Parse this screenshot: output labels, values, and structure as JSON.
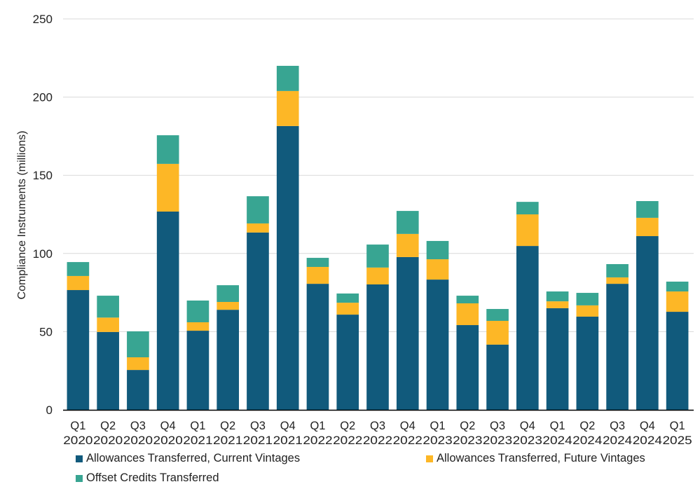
{
  "chart_data": {
    "type": "bar",
    "stacked": true,
    "title": "",
    "xlabel": "",
    "ylabel": "Compliance Instruments (millions)",
    "ylim": [
      0,
      250
    ],
    "yticks": [
      0,
      50,
      100,
      150,
      200,
      250
    ],
    "grid": true,
    "legend_position": "bottom",
    "categories": [
      {
        "q": "Q1",
        "year": "2020"
      },
      {
        "q": "Q2",
        "year": "2020"
      },
      {
        "q": "Q3",
        "year": "2020"
      },
      {
        "q": "Q4",
        "year": "2020"
      },
      {
        "q": "Q1",
        "year": "2021"
      },
      {
        "q": "Q2",
        "year": "2021"
      },
      {
        "q": "Q3",
        "year": "2021"
      },
      {
        "q": "Q4",
        "year": "2021"
      },
      {
        "q": "Q1",
        "year": "2022"
      },
      {
        "q": "Q2",
        "year": "2022"
      },
      {
        "q": "Q3",
        "year": "2022"
      },
      {
        "q": "Q4",
        "year": "2022"
      },
      {
        "q": "Q1",
        "year": "2023"
      },
      {
        "q": "Q2",
        "year": "2023"
      },
      {
        "q": "Q3",
        "year": "2023"
      },
      {
        "q": "Q4",
        "year": "2023"
      },
      {
        "q": "Q1",
        "year": "2024"
      },
      {
        "q": "Q2",
        "year": "2024"
      },
      {
        "q": "Q3",
        "year": "2024"
      },
      {
        "q": "Q4",
        "year": "2024"
      },
      {
        "q": "Q1",
        "year": "2025"
      }
    ],
    "series": [
      {
        "name": "Allowances Transferred, Current Vintages",
        "color": "#115a7c",
        "values": [
          76.6,
          49.8,
          25.5,
          126.8,
          50.6,
          64.0,
          113.4,
          181.5,
          80.6,
          60.9,
          80.2,
          97.7,
          83.3,
          54.2,
          41.7,
          104.8,
          65.0,
          59.6,
          80.6,
          111.1,
          62.7
        ]
      },
      {
        "name": "Allowances Transferred, Future Vintages",
        "color": "#fdb726",
        "values": [
          9.0,
          9.2,
          8.1,
          30.5,
          5.4,
          5.0,
          5.8,
          22.4,
          10.8,
          7.6,
          10.8,
          14.8,
          13.0,
          13.9,
          15.2,
          20.2,
          4.4,
          7.2,
          4.1,
          11.7,
          13.0
        ]
      },
      {
        "name": "Offset Credits Transferred",
        "color": "#38a592",
        "values": [
          8.9,
          14.0,
          16.6,
          18.3,
          13.9,
          10.7,
          17.4,
          16.1,
          5.8,
          5.9,
          14.7,
          14.7,
          11.7,
          4.9,
          7.6,
          8.0,
          6.3,
          8.0,
          8.5,
          10.7,
          6.3
        ]
      }
    ]
  }
}
